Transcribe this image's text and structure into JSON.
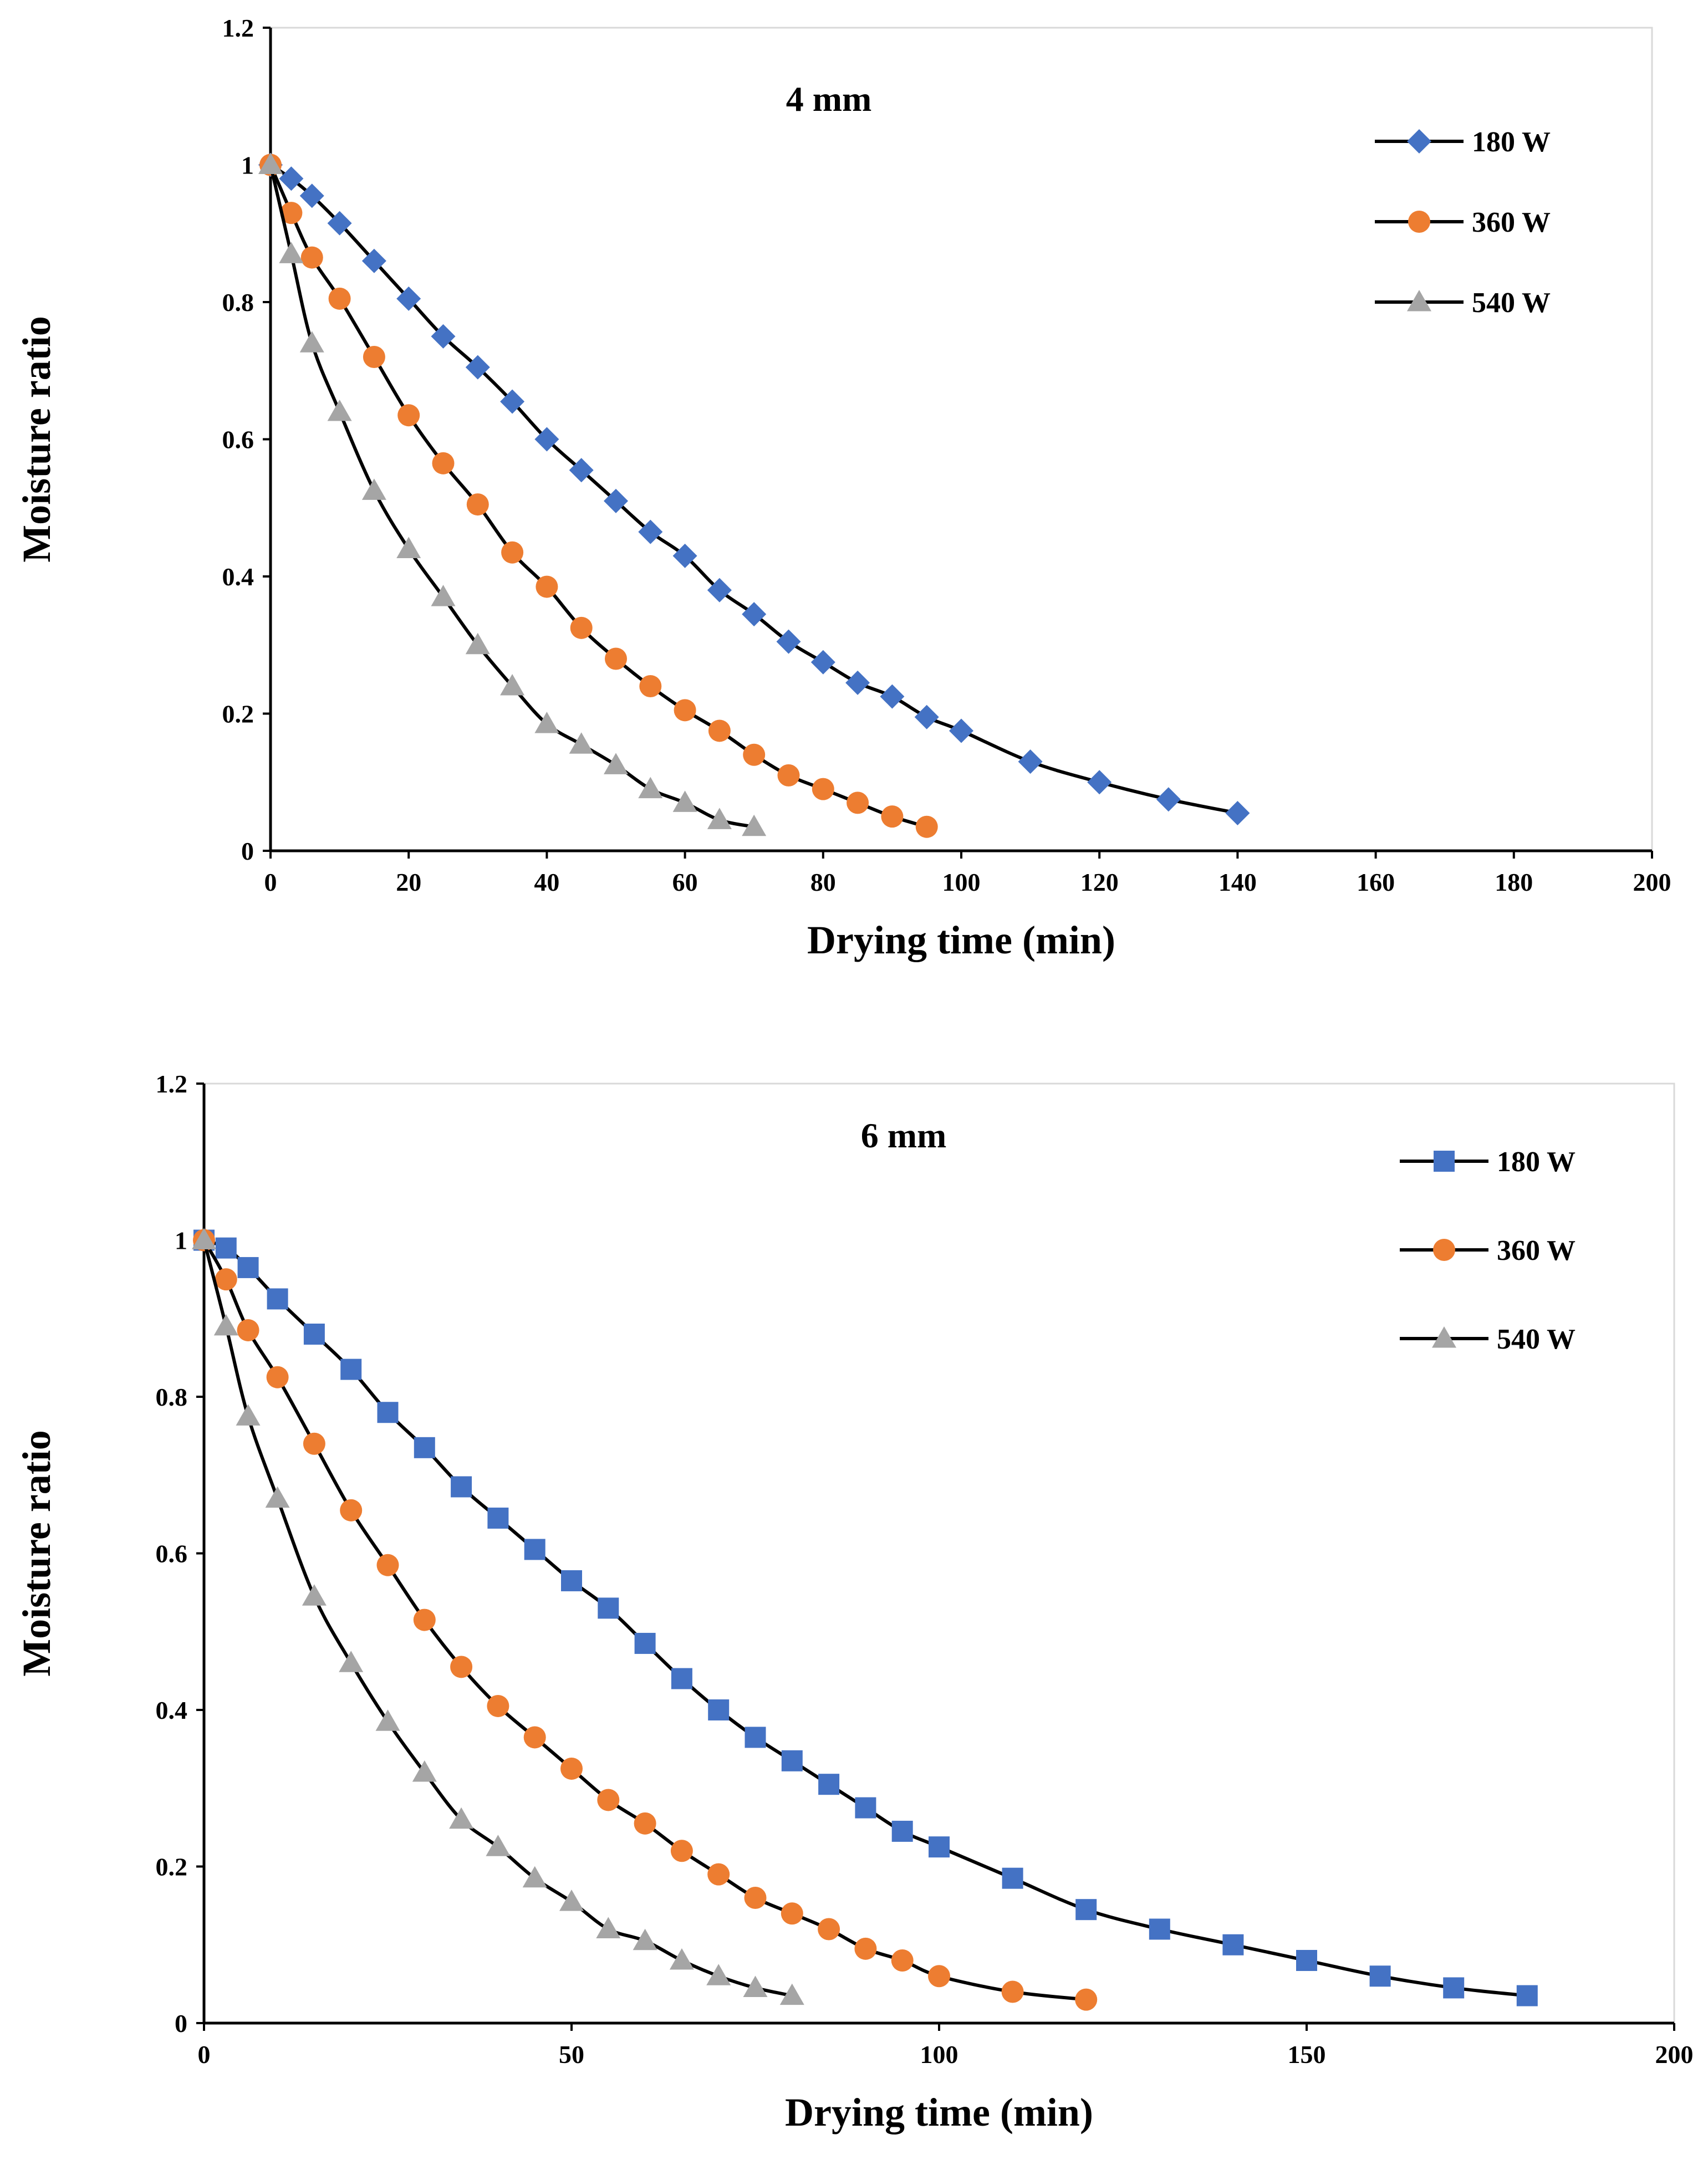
{
  "chart_data": [
    {
      "type": "line",
      "title": "4 mm",
      "xlabel": "Drying time (min)",
      "ylabel": "Moisture ratio",
      "xlim": [
        0,
        200
      ],
      "ylim": [
        0,
        1.2
      ],
      "xticks": [
        0,
        20,
        40,
        60,
        80,
        100,
        120,
        140,
        160,
        180,
        200
      ],
      "yticks": [
        0,
        0.2,
        0.4,
        0.6,
        0.8,
        1,
        1.2
      ],
      "grid": false,
      "legend_position": "top-right",
      "series": [
        {
          "name": "180 W",
          "marker": "diamond",
          "color": "#4472C4",
          "x": [
            0,
            3,
            6,
            10,
            15,
            20,
            25,
            30,
            35,
            40,
            45,
            50,
            55,
            60,
            65,
            70,
            75,
            80,
            85,
            90,
            95,
            100,
            110,
            120,
            130,
            140
          ],
          "y": [
            1,
            0.98,
            0.955,
            0.915,
            0.86,
            0.805,
            0.75,
            0.705,
            0.655,
            0.6,
            0.555,
            0.51,
            0.465,
            0.43,
            0.38,
            0.345,
            0.305,
            0.275,
            0.245,
            0.225,
            0.195,
            0.175,
            0.13,
            0.1,
            0.075,
            0.055
          ]
        },
        {
          "name": "360 W",
          "marker": "circle",
          "color": "#ED7D31",
          "x": [
            0,
            3,
            6,
            10,
            15,
            20,
            25,
            30,
            35,
            40,
            45,
            50,
            55,
            60,
            65,
            70,
            75,
            80,
            85,
            90,
            95
          ],
          "y": [
            1,
            0.93,
            0.865,
            0.805,
            0.72,
            0.635,
            0.565,
            0.505,
            0.435,
            0.385,
            0.325,
            0.28,
            0.24,
            0.205,
            0.175,
            0.14,
            0.11,
            0.09,
            0.07,
            0.05,
            0.035
          ]
        },
        {
          "name": "540 W",
          "marker": "triangle",
          "color": "#A5A5A5",
          "x": [
            0,
            3,
            6,
            10,
            15,
            20,
            25,
            30,
            35,
            40,
            45,
            50,
            55,
            60,
            65,
            70
          ],
          "y": [
            1,
            0.87,
            0.74,
            0.64,
            0.525,
            0.44,
            0.37,
            0.3,
            0.24,
            0.185,
            0.155,
            0.125,
            0.09,
            0.07,
            0.045,
            0.035
          ]
        }
      ]
    },
    {
      "type": "line",
      "title": "6 mm",
      "xlabel": "Drying time (min)",
      "ylabel": "Moisture ratio",
      "xlim": [
        0,
        200
      ],
      "ylim": [
        0,
        1.2
      ],
      "xticks": [
        0,
        50,
        100,
        150,
        200
      ],
      "yticks": [
        0,
        0.2,
        0.4,
        0.6,
        0.8,
        1,
        1.2
      ],
      "grid": false,
      "legend_position": "top-right",
      "series": [
        {
          "name": "180 W",
          "marker": "square",
          "color": "#4472C4",
          "x": [
            0,
            3,
            6,
            10,
            15,
            20,
            25,
            30,
            35,
            40,
            45,
            50,
            55,
            60,
            65,
            70,
            75,
            80,
            85,
            90,
            95,
            100,
            110,
            120,
            130,
            140,
            150,
            160,
            170,
            180
          ],
          "y": [
            1,
            0.99,
            0.965,
            0.925,
            0.88,
            0.835,
            0.78,
            0.735,
            0.685,
            0.645,
            0.605,
            0.565,
            0.53,
            0.485,
            0.44,
            0.4,
            0.365,
            0.335,
            0.305,
            0.275,
            0.245,
            0.225,
            0.185,
            0.145,
            0.12,
            0.1,
            0.08,
            0.06,
            0.045,
            0.035
          ]
        },
        {
          "name": "360 W",
          "marker": "circle",
          "color": "#ED7D31",
          "x": [
            0,
            3,
            6,
            10,
            15,
            20,
            25,
            30,
            35,
            40,
            45,
            50,
            55,
            60,
            65,
            70,
            75,
            80,
            85,
            90,
            95,
            100,
            110,
            120
          ],
          "y": [
            1,
            0.95,
            0.885,
            0.825,
            0.74,
            0.655,
            0.585,
            0.515,
            0.455,
            0.405,
            0.365,
            0.325,
            0.285,
            0.255,
            0.22,
            0.19,
            0.16,
            0.14,
            0.12,
            0.095,
            0.08,
            0.06,
            0.04,
            0.03
          ]
        },
        {
          "name": "540 W",
          "marker": "triangle",
          "color": "#A5A5A5",
          "x": [
            0,
            3,
            6,
            10,
            15,
            20,
            25,
            30,
            35,
            40,
            45,
            50,
            55,
            60,
            65,
            70,
            75,
            80
          ],
          "y": [
            1,
            0.89,
            0.775,
            0.67,
            0.545,
            0.46,
            0.385,
            0.32,
            0.26,
            0.225,
            0.185,
            0.155,
            0.12,
            0.105,
            0.08,
            0.06,
            0.045,
            0.035
          ]
        }
      ]
    }
  ]
}
